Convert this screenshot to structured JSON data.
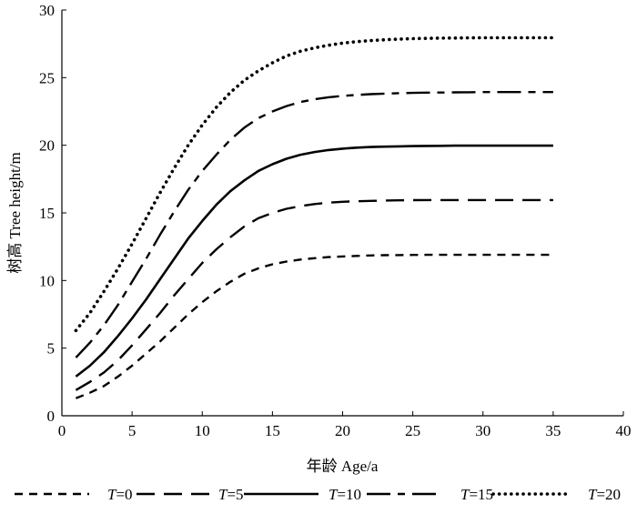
{
  "chart_data": {
    "type": "line",
    "xlabel": "年龄  Age/a",
    "ylabel": "树高  Tree height/m",
    "xlim": [
      0,
      40
    ],
    "ylim": [
      0,
      30
    ],
    "xticks": [
      0,
      5,
      10,
      15,
      20,
      25,
      30,
      35,
      40
    ],
    "yticks": [
      0,
      5,
      10,
      15,
      20,
      25,
      30
    ],
    "grid": false,
    "legend_placement": "bottom",
    "x": [
      1,
      2,
      3,
      4,
      5,
      6,
      7,
      8,
      9,
      10,
      11,
      12,
      13,
      14,
      15,
      16,
      17,
      18,
      19,
      20,
      21,
      22,
      23,
      24,
      25,
      26,
      27,
      28,
      29,
      30,
      31,
      32,
      33,
      34,
      35
    ],
    "series": [
      {
        "name": "T=0",
        "legend_italic": "T",
        "legend_rest": "=0",
        "style": "dashed",
        "values": [
          1.3,
          1.7,
          2.2,
          2.9,
          3.7,
          4.6,
          5.5,
          6.5,
          7.5,
          8.4,
          9.2,
          9.9,
          10.5,
          10.9,
          11.2,
          11.4,
          11.55,
          11.65,
          11.73,
          11.78,
          11.82,
          11.85,
          11.87,
          11.88,
          11.89,
          11.9,
          11.9,
          11.9,
          11.9,
          11.9,
          11.9,
          11.9,
          11.9,
          11.9,
          11.9
        ]
      },
      {
        "name": "T=5",
        "legend_italic": "T",
        "legend_rest": "=5",
        "style": "longdash",
        "values": [
          1.9,
          2.5,
          3.2,
          4.1,
          5.2,
          6.4,
          7.6,
          8.9,
          10.1,
          11.3,
          12.3,
          13.2,
          14.0,
          14.6,
          15.0,
          15.3,
          15.5,
          15.65,
          15.75,
          15.82,
          15.86,
          15.89,
          15.91,
          15.93,
          15.94,
          15.95,
          15.95,
          15.95,
          15.95,
          15.95,
          15.95,
          15.95,
          15.95,
          15.95,
          15.95
        ]
      },
      {
        "name": "T=10",
        "legend_italic": "T",
        "legend_rest": "=10",
        "style": "solid",
        "values": [
          2.9,
          3.7,
          4.7,
          5.9,
          7.2,
          8.6,
          10.1,
          11.6,
          13.1,
          14.4,
          15.6,
          16.6,
          17.4,
          18.1,
          18.6,
          19.0,
          19.3,
          19.5,
          19.65,
          19.75,
          19.82,
          19.87,
          19.9,
          19.92,
          19.94,
          19.95,
          19.96,
          19.97,
          19.97,
          19.97,
          19.97,
          19.97,
          19.97,
          19.97,
          19.97
        ]
      },
      {
        "name": "T=15",
        "legend_italic": "T",
        "legend_rest": "=15",
        "style": "dashdot",
        "values": [
          4.3,
          5.4,
          6.7,
          8.2,
          9.9,
          11.6,
          13.4,
          15.1,
          16.7,
          18.1,
          19.3,
          20.4,
          21.3,
          22.0,
          22.5,
          22.9,
          23.2,
          23.4,
          23.55,
          23.65,
          23.72,
          23.78,
          23.82,
          23.85,
          23.87,
          23.89,
          23.9,
          23.91,
          23.92,
          23.93,
          23.93,
          23.93,
          23.93,
          23.93,
          23.93
        ]
      },
      {
        "name": "T=20",
        "legend_italic": "T",
        "legend_rest": "=20",
        "style": "dotted",
        "values": [
          6.3,
          7.6,
          9.2,
          10.9,
          12.7,
          14.6,
          16.5,
          18.3,
          20.0,
          21.5,
          22.8,
          23.9,
          24.8,
          25.5,
          26.1,
          26.6,
          26.95,
          27.2,
          27.4,
          27.55,
          27.66,
          27.74,
          27.8,
          27.85,
          27.88,
          27.9,
          27.92,
          27.93,
          27.94,
          27.95,
          27.95,
          27.95,
          27.95,
          27.95,
          27.95
        ]
      }
    ]
  }
}
